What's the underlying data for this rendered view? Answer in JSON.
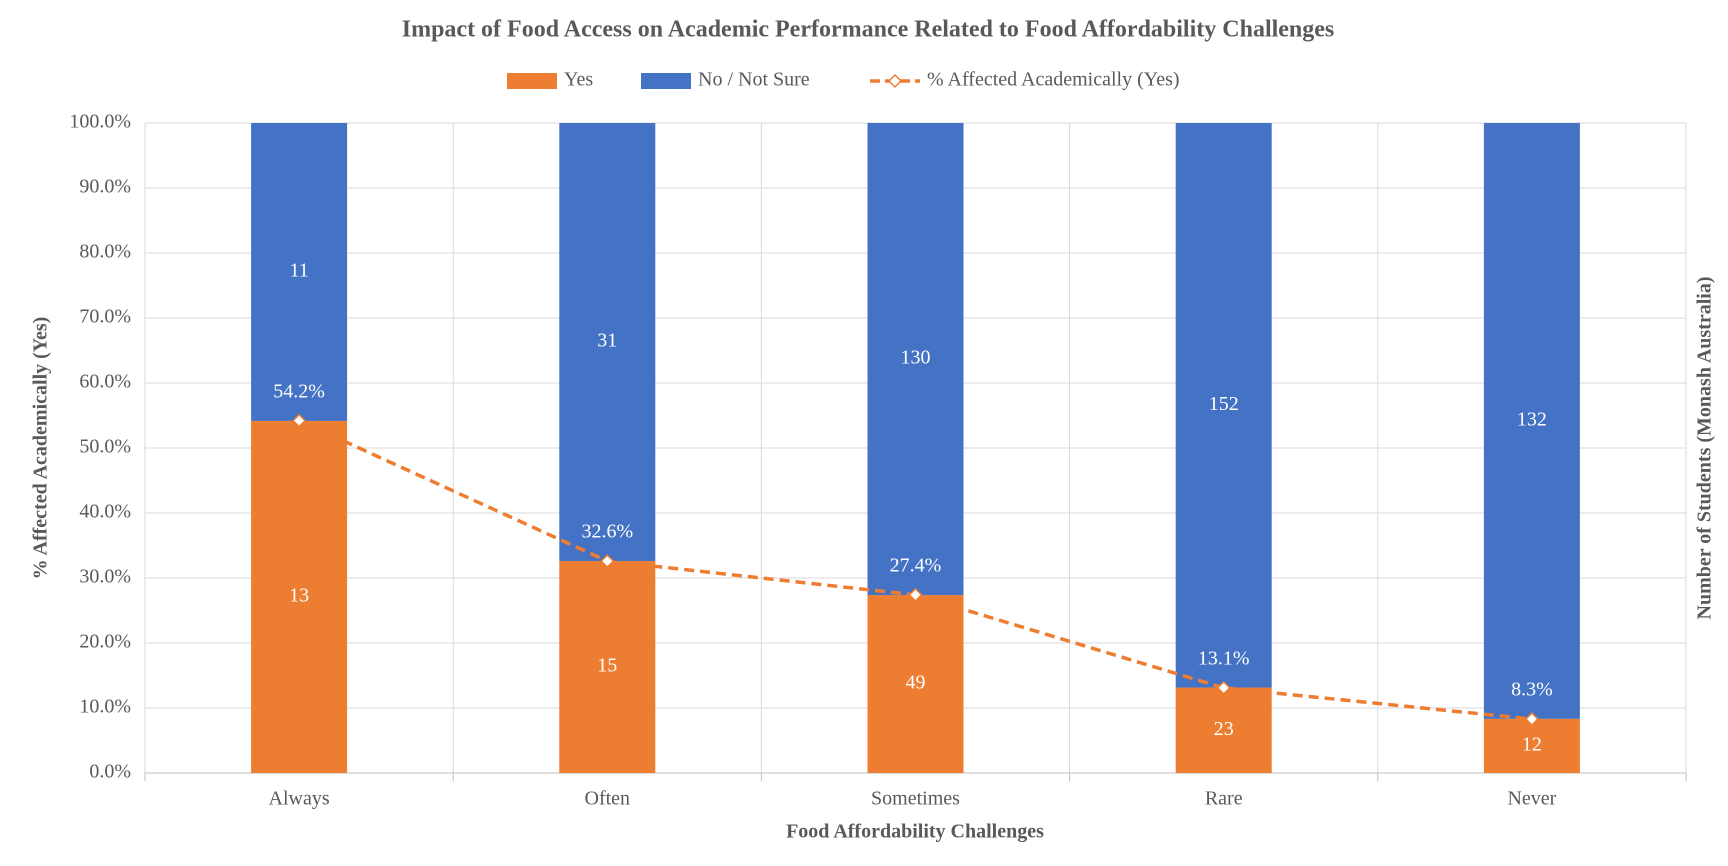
{
  "chart_data": {
    "type": "stacked_bar_line",
    "title": "Impact of Food Access on Academic Performance Related to Food Affordability Challenges",
    "x_label": "Food Affordability Challenges",
    "y_label": "% Affected Academically (Yes)",
    "y2_label": "Number of Students (Monash Australia)",
    "categories": [
      "Always",
      "Often",
      "Sometimes",
      "Rare",
      "Never"
    ],
    "stacking": "percent",
    "grid": true,
    "ylim": [
      0,
      100
    ],
    "yticks": [
      {
        "value": 0,
        "label": "0.0%"
      },
      {
        "value": 10,
        "label": "10.0%"
      },
      {
        "value": 20,
        "label": "20.0%"
      },
      {
        "value": 30,
        "label": "30.0%"
      },
      {
        "value": 40,
        "label": "40.0%"
      },
      {
        "value": 50,
        "label": "50.0%"
      },
      {
        "value": 60,
        "label": "60.0%"
      },
      {
        "value": 70,
        "label": "70.0%"
      },
      {
        "value": 80,
        "label": "80.0%"
      },
      {
        "value": 90,
        "label": "90.0%"
      },
      {
        "value": 100,
        "label": "100.0%"
      }
    ],
    "series": [
      {
        "name": "Yes",
        "type": "bar",
        "axis": "y2",
        "color": "#ED7D31",
        "values": [
          13,
          15,
          49,
          23,
          12
        ]
      },
      {
        "name": "No / Not Sure",
        "type": "bar",
        "axis": "y2",
        "color": "#4472C4",
        "values": [
          11,
          31,
          130,
          152,
          132
        ]
      },
      {
        "name": "% Affected Academically (Yes)",
        "type": "line",
        "axis": "y",
        "color": "#ED7D31",
        "dashed": true,
        "values": [
          54.2,
          32.6,
          27.4,
          13.1,
          8.3
        ],
        "value_labels": [
          "54.2%",
          "32.6%",
          "27.4%",
          "13.1%",
          "8.3%"
        ]
      }
    ]
  }
}
